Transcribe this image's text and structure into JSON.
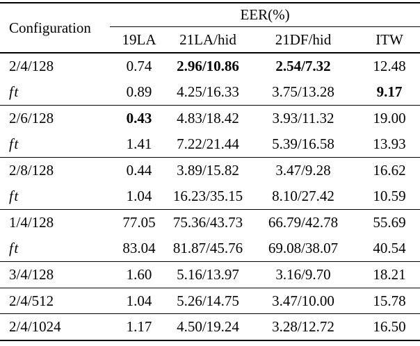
{
  "colors": {
    "text": "#000000",
    "background": "#ffffff",
    "rule": "#000000"
  },
  "table": {
    "row_header": "Configuration",
    "col_group_header": "EER(%)",
    "sub_headers": [
      "19LA",
      "21LA/hid",
      "21DF/hid",
      "ITW"
    ],
    "rows": [
      {
        "config": "2/4/128",
        "italic": false,
        "rule_above": false,
        "values": [
          "0.74",
          "2.96/10.86",
          "2.54/7.32",
          "12.48"
        ],
        "bold": [
          false,
          true,
          true,
          false
        ]
      },
      {
        "config": "ft",
        "italic": true,
        "rule_above": false,
        "values": [
          "0.89",
          "4.25/16.33",
          "3.75/13.28",
          "9.17"
        ],
        "bold": [
          false,
          false,
          false,
          true
        ]
      },
      {
        "config": "2/6/128",
        "italic": false,
        "rule_above": true,
        "values": [
          "0.43",
          "4.83/18.42",
          "3.93/11.32",
          "19.00"
        ],
        "bold": [
          true,
          false,
          false,
          false
        ]
      },
      {
        "config": "ft",
        "italic": true,
        "rule_above": false,
        "values": [
          "1.41",
          "7.22/21.44",
          "5.39/16.58",
          "13.93"
        ],
        "bold": [
          false,
          false,
          false,
          false
        ]
      },
      {
        "config": "2/8/128",
        "italic": false,
        "rule_above": true,
        "values": [
          "0.44",
          "3.89/15.82",
          "3.47/9.28",
          "16.62"
        ],
        "bold": [
          false,
          false,
          false,
          false
        ]
      },
      {
        "config": "ft",
        "italic": true,
        "rule_above": false,
        "values": [
          "1.04",
          "16.23/35.15",
          "8.10/27.42",
          "10.59"
        ],
        "bold": [
          false,
          false,
          false,
          false
        ]
      },
      {
        "config": "1/4/128",
        "italic": false,
        "rule_above": true,
        "values": [
          "77.05",
          "75.36/43.73",
          "66.79/42.78",
          "55.69"
        ],
        "bold": [
          false,
          false,
          false,
          false
        ]
      },
      {
        "config": "ft",
        "italic": true,
        "rule_above": false,
        "values": [
          "83.04",
          "81.87/45.76",
          "69.08/38.07",
          "40.54"
        ],
        "bold": [
          false,
          false,
          false,
          false
        ]
      },
      {
        "config": "3/4/128",
        "italic": false,
        "rule_above": true,
        "values": [
          "1.60",
          "5.16/13.97",
          "3.16/9.70",
          "18.21"
        ],
        "bold": [
          false,
          false,
          false,
          false
        ]
      },
      {
        "config": "2/4/512",
        "italic": false,
        "rule_above": true,
        "values": [
          "1.04",
          "5.26/14.75",
          "3.47/10.00",
          "15.78"
        ],
        "bold": [
          false,
          false,
          false,
          false
        ]
      },
      {
        "config": "2/4/1024",
        "italic": false,
        "rule_above": true,
        "values": [
          "1.17",
          "4.50/19.24",
          "3.28/12.72",
          "16.50"
        ],
        "bold": [
          false,
          false,
          false,
          false
        ]
      }
    ]
  }
}
